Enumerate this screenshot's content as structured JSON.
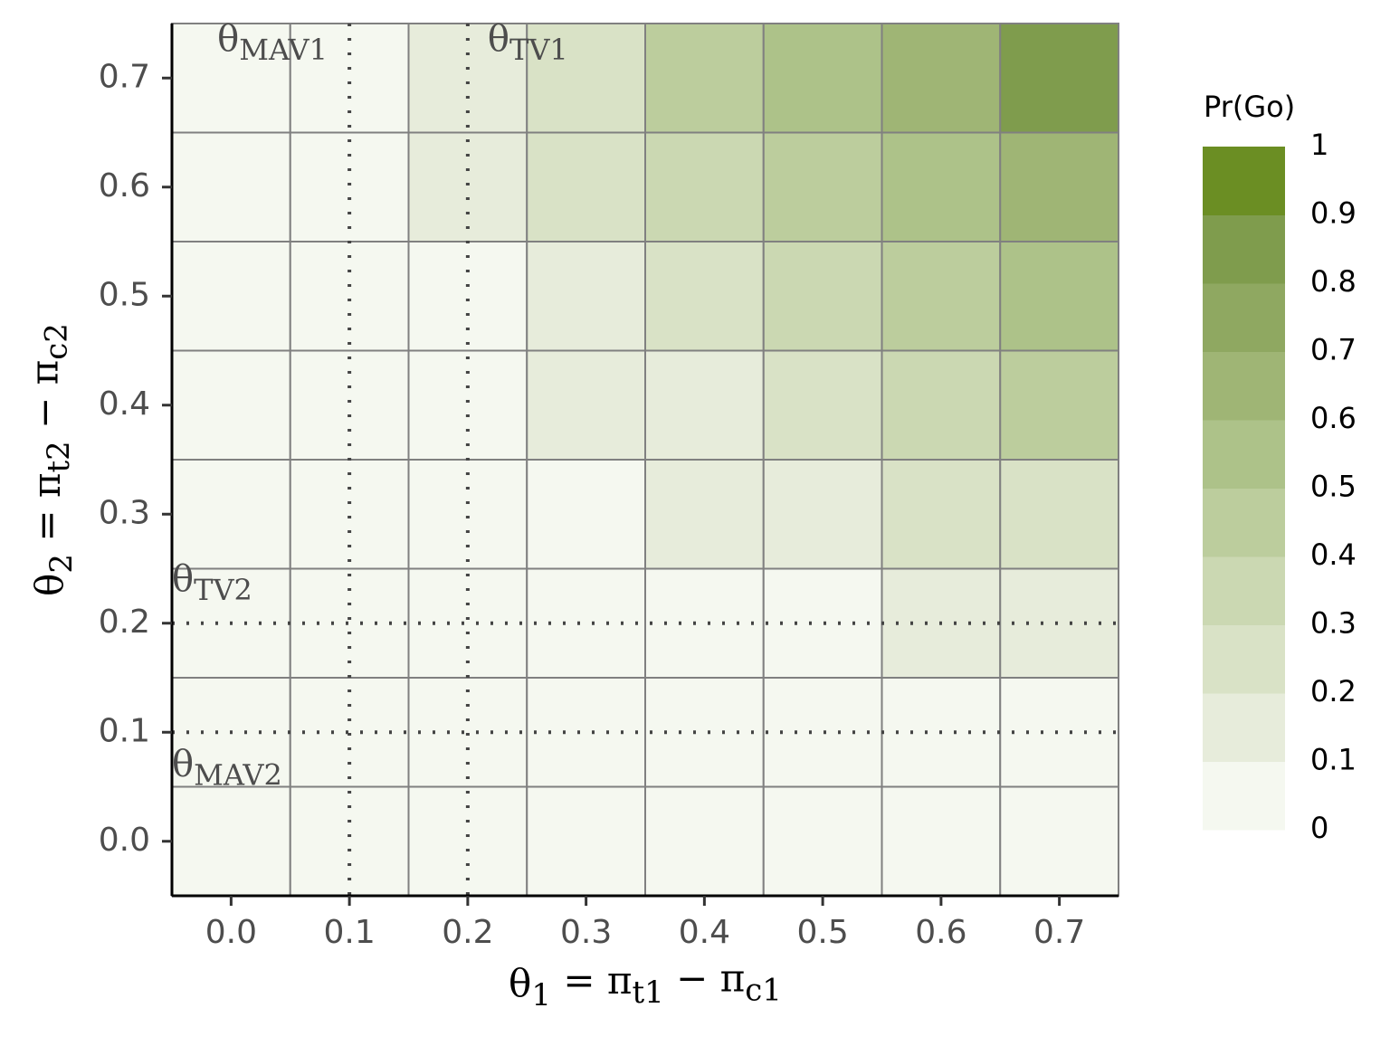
{
  "chart_data": {
    "type": "heatmap",
    "x_label": [
      "θ",
      "1",
      " = π",
      "t1",
      " − π",
      "c1"
    ],
    "y_label": [
      "θ",
      "2",
      " = π",
      "t2",
      " − π",
      "c2"
    ],
    "x": [
      0,
      0.1,
      0.2,
      0.3,
      0.4,
      0.5,
      0.6,
      0.7
    ],
    "y": [
      0,
      0.1,
      0.2,
      0.3,
      0.4,
      0.5,
      0.6,
      0.7
    ],
    "z": [
      [
        0,
        0,
        0,
        0,
        0,
        0,
        0.02,
        0.03
      ],
      [
        0,
        0,
        0,
        0.01,
        0.02,
        0.03,
        0.05,
        0.06
      ],
      [
        0,
        0,
        0,
        0.02,
        0.05,
        0.08,
        0.14,
        0.16
      ],
      [
        0,
        0,
        0.02,
        0.07,
        0.12,
        0.18,
        0.25,
        0.28
      ],
      [
        0,
        0.01,
        0.05,
        0.12,
        0.18,
        0.28,
        0.35,
        0.45
      ],
      [
        0.01,
        0.03,
        0.08,
        0.15,
        0.25,
        0.35,
        0.45,
        0.55
      ],
      [
        0.02,
        0.04,
        0.12,
        0.25,
        0.38,
        0.45,
        0.55,
        0.65
      ],
      [
        0.03,
        0.06,
        0.15,
        0.28,
        0.45,
        0.55,
        0.65,
        0.82
      ]
    ],
    "xlim": [
      -0.05,
      0.75
    ],
    "ylim": [
      -0.05,
      0.75
    ],
    "xticks": [
      {
        "value": 0,
        "label": "0.0"
      },
      0.1,
      0.2,
      0.3,
      0.4,
      0.5,
      0.6,
      0.7
    ],
    "yticks": [
      {
        "value": 0,
        "label": "0.0"
      },
      0.1,
      0.2,
      0.3,
      0.4,
      0.5,
      0.6,
      0.7
    ],
    "reference_lines": {
      "x": [
        {
          "value": 0.1,
          "label": [
            "θ",
            "MAV1"
          ]
        },
        {
          "value": 0.2,
          "label": [
            "θ",
            "TV1"
          ]
        }
      ],
      "y": [
        {
          "value": 0.2,
          "label": [
            "θ",
            "TV2"
          ]
        },
        {
          "value": 0.1,
          "label": [
            "θ",
            "MAV2"
          ]
        }
      ]
    },
    "legend": {
      "title": "Pr(Go)",
      "breaks": [
        0,
        0.1,
        0.2,
        0.3,
        0.4,
        0.5,
        0.6,
        0.7,
        0.8,
        0.9,
        1
      ],
      "colors": [
        "#f5f8f0",
        "#e7ecdb",
        "#d9e2c6",
        "#cbd8b2",
        "#bccd9d",
        "#adc289",
        "#9fb575",
        "#8fa861",
        "#7f9c4d",
        "#6b8e23"
      ]
    }
  }
}
